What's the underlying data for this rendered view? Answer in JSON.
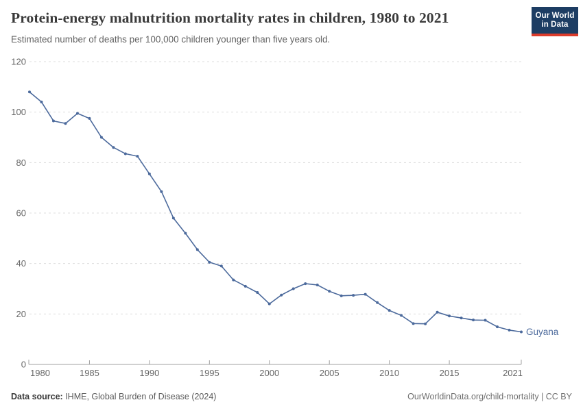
{
  "header": {
    "title": "Protein-energy malnutrition mortality rates in children, 1980 to 2021",
    "subtitle": "Estimated number of deaths per 100,000 children younger than five years old.",
    "logo": {
      "line1": "Our World",
      "line2": "in Data",
      "bg_color": "#1d3d63",
      "accent_color": "#dc3b2b"
    }
  },
  "chart_data": {
    "type": "line",
    "title": "Protein-energy malnutrition mortality rates in children, 1980 to 2021",
    "xlabel": "",
    "ylabel": "Estimated deaths per 100,000 children under five",
    "x": [
      1980,
      1981,
      1982,
      1983,
      1984,
      1985,
      1986,
      1987,
      1988,
      1989,
      1990,
      1991,
      1992,
      1993,
      1994,
      1995,
      1996,
      1997,
      1998,
      1999,
      2000,
      2001,
      2002,
      2003,
      2004,
      2005,
      2006,
      2007,
      2008,
      2009,
      2010,
      2011,
      2012,
      2013,
      2014,
      2015,
      2016,
      2017,
      2018,
      2019,
      2020,
      2021
    ],
    "series": [
      {
        "name": "Guyana",
        "color": "#4c6a9c",
        "values": [
          108,
          104,
          96.5,
          95.5,
          99.5,
          97.5,
          90,
          86,
          83.5,
          82.5,
          75.5,
          68.5,
          58,
          52,
          45.5,
          40.5,
          39,
          33.5,
          31,
          28.5,
          24,
          27.5,
          30,
          32,
          31.5,
          29,
          27.2,
          27.4,
          27.8,
          24.5,
          21.4,
          19.4,
          16.2,
          16.1,
          20.7,
          19.2,
          18.4,
          17.6,
          17.5,
          14.9,
          13.6,
          12.9
        ]
      }
    ],
    "x_ticks": [
      1980,
      1985,
      1990,
      1995,
      2000,
      2005,
      2010,
      2015,
      2021
    ],
    "y_ticks": [
      0,
      20,
      40,
      60,
      80,
      100,
      120
    ],
    "xlim": [
      1980,
      2021
    ],
    "ylim": [
      0,
      120
    ],
    "grid": "horizontal-dashed",
    "legend_position": "end-of-line-label",
    "entity_label": "Guyana",
    "colors": {
      "line": "#4c6a9c",
      "grid": "#dcdcdc",
      "axis": "#a0a0a0",
      "tick_label": "#666666"
    }
  },
  "footer": {
    "source_label": "Data source:",
    "source_value": " IHME, Global Burden of Disease (2024)",
    "credit": "OurWorldinData.org/child-mortality | CC BY"
  }
}
